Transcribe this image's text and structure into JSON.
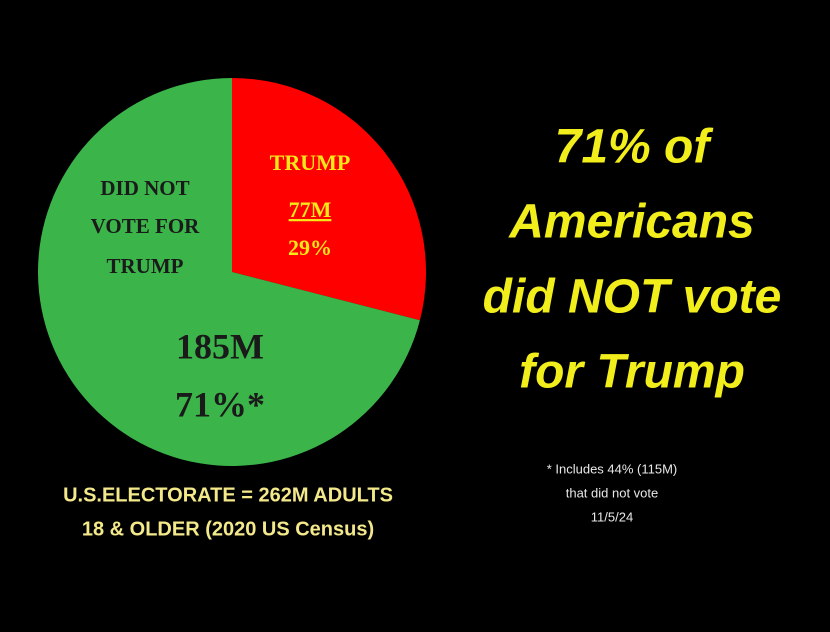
{
  "chart_data": {
    "type": "pie",
    "categories": [
      [
        "TRUMP"
      ],
      [
        "DID NOT",
        "VOTE FOR",
        "TRUMP"
      ]
    ],
    "values": [
      29,
      71
    ],
    "value_labels": [
      "29%",
      "71%*"
    ],
    "counts": [
      77,
      185
    ],
    "count_labels": [
      "77M",
      "185M"
    ],
    "colors": [
      "#ff0000",
      "#3bb54a"
    ],
    "headline": [
      "71% of",
      "Americans",
      "did NOT vote",
      "for Trump"
    ],
    "footer": [
      "U.S.ELECTORATE = 262M ADULTS",
      "18 & OLDER  (2020 US Census)"
    ],
    "note": [
      "* Includes 44%  (115M)",
      "that did not vote",
      "11/5/24"
    ]
  }
}
